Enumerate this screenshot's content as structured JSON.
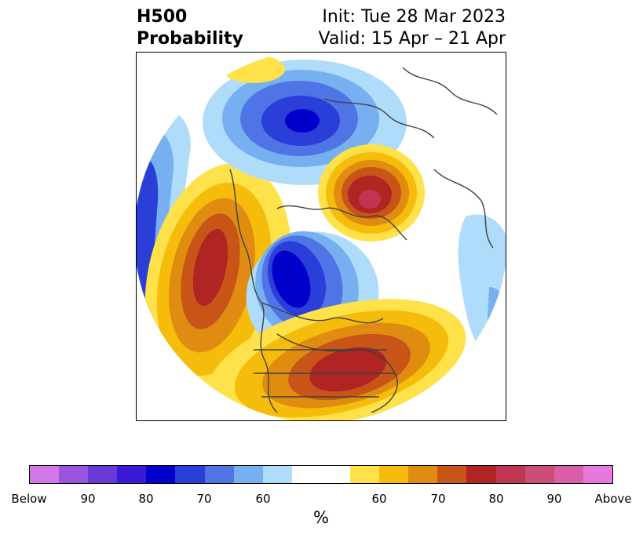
{
  "title": {
    "left_line1": "H500",
    "left_line2": "Probability",
    "right_line1": "Init: Tue 28 Mar 2023",
    "right_line2": "Valid: 15 Apr – 21 Apr"
  },
  "colorbar": {
    "unit": "%",
    "colors": [
      "#d178e6",
      "#9a55e0",
      "#6b38d8",
      "#3a1ad4",
      "#0000cc",
      "#2a3ed8",
      "#4f74e6",
      "#76b0f0",
      "#aedcfa",
      "#ffffff",
      "#ffffff",
      "#ffe24a",
      "#f5bc0c",
      "#e08c10",
      "#c85418",
      "#b02424",
      "#c03652",
      "#cc4c7a",
      "#da5ea8",
      "#e678de"
    ],
    "tick_labels": [
      "Below",
      "90",
      "80",
      "70",
      "60",
      "60",
      "70",
      "80",
      "90",
      "Above"
    ]
  },
  "map": {
    "anomaly_colors": {
      "above_strong": "#b02424",
      "above_mid": "#e08c10",
      "above_weak": "#ffe24a",
      "below_strong": "#0000cc",
      "below_mid": "#4f74e6",
      "below_weak": "#aedcfa",
      "coast": "#404040"
    }
  }
}
